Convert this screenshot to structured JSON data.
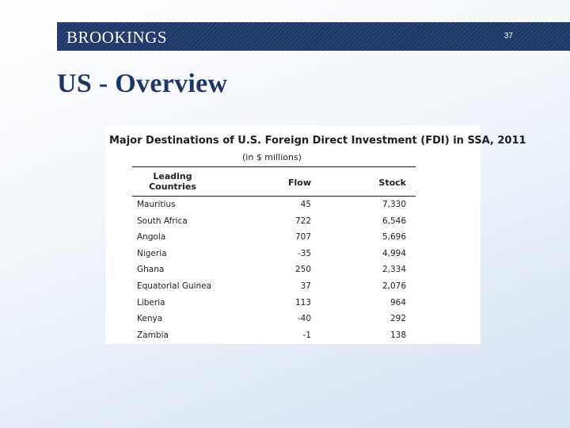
{
  "header": {
    "brand": "BROOKINGS",
    "page_number": "37"
  },
  "slide": {
    "title": "US - Overview"
  },
  "table": {
    "title": "Major Destinations of U.S. Foreign Direct Investment (FDI) in SSA, 2011",
    "subtitle": "(in $ millions)",
    "columns": {
      "country_line1": "Leading",
      "country_line2": "Countries",
      "flow": "Flow",
      "stock": "Stock"
    },
    "rows": [
      {
        "country": "Mauritius",
        "flow": "45",
        "stock": "7,330"
      },
      {
        "country": "South Africa",
        "flow": "722",
        "stock": "6,546"
      },
      {
        "country": "Angola",
        "flow": "707",
        "stock": "5,696"
      },
      {
        "country": "Nigeria",
        "flow": "-35",
        "stock": "4,994"
      },
      {
        "country": "Ghana",
        "flow": "250",
        "stock": "2,334"
      },
      {
        "country": "Equatorial Guinea",
        "flow": "37",
        "stock": "2,076"
      },
      {
        "country": "Liberia",
        "flow": "113",
        "stock": "964"
      },
      {
        "country": "Kenya",
        "flow": "-40",
        "stock": "292"
      },
      {
        "country": "Zambia",
        "flow": "-1",
        "stock": "138"
      }
    ]
  }
}
